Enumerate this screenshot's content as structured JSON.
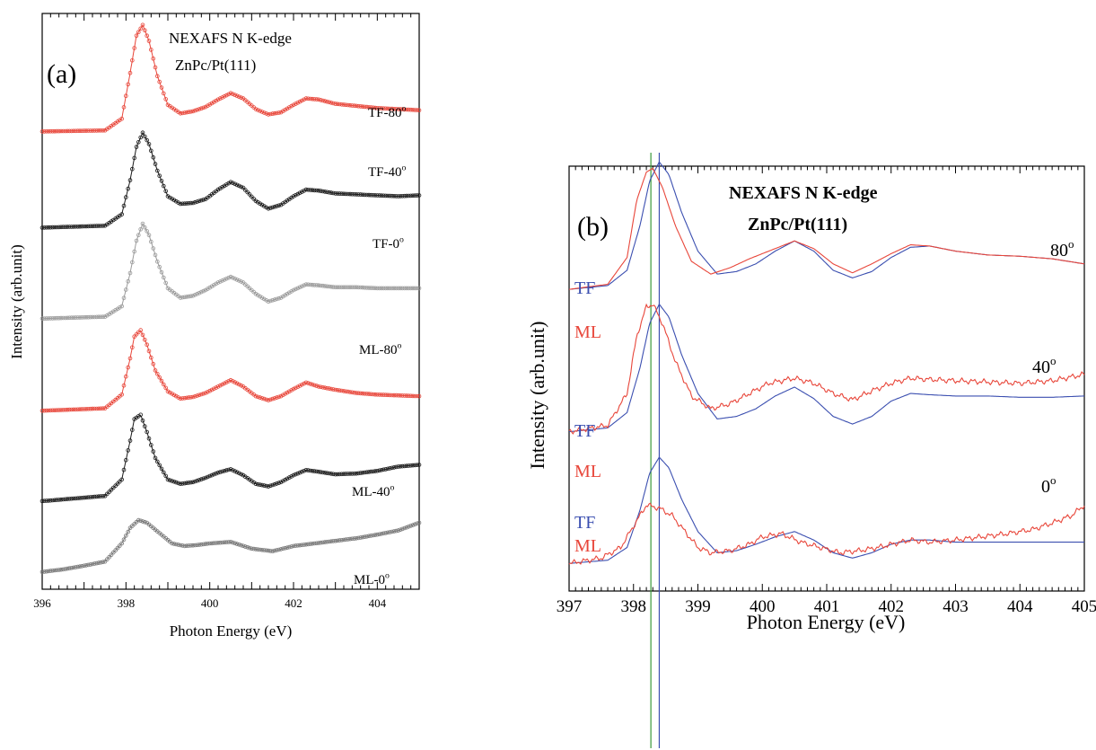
{
  "chart_data": [
    {
      "panel": "(a)",
      "type": "line",
      "title": "NEXAFS N K-edge",
      "subtitle": "ZnPc/Pt(111)",
      "xlabel": "Photon Energy (eV)",
      "ylabel": "Intensity (arb.unit)",
      "xlim": [
        396,
        405
      ],
      "x_ticks": [
        "396",
        "398",
        "400",
        "402",
        "404"
      ],
      "ylim": [
        0,
        1
      ],
      "grid": false,
      "series": [
        {
          "name": "TF-80",
          "label_base": "TF-80",
          "label_sup": "o",
          "color": "#e8463a",
          "marker": "circle",
          "offset": 0.795,
          "scale": 0.185,
          "x": [
            396.0,
            397.5,
            397.9,
            398.1,
            398.25,
            398.4,
            398.55,
            398.75,
            399.0,
            399.3,
            399.6,
            399.9,
            400.2,
            400.5,
            400.8,
            401.1,
            401.4,
            401.7,
            402.0,
            402.3,
            402.6,
            403.0,
            403.5,
            404.0,
            404.5,
            405.0
          ],
          "y": [
            0.0,
            0.01,
            0.12,
            0.55,
            0.9,
            1.0,
            0.85,
            0.52,
            0.25,
            0.17,
            0.19,
            0.23,
            0.3,
            0.36,
            0.31,
            0.21,
            0.16,
            0.18,
            0.25,
            0.31,
            0.3,
            0.26,
            0.24,
            0.22,
            0.21,
            0.2
          ]
        },
        {
          "name": "TF-40",
          "label_base": "TF-40",
          "label_sup": "o",
          "color": "#1a1a1a",
          "marker": "circle",
          "offset": 0.628,
          "scale": 0.165,
          "x": [
            396.0,
            397.5,
            397.9,
            398.1,
            398.25,
            398.4,
            398.55,
            398.75,
            399.0,
            399.3,
            399.6,
            399.9,
            400.2,
            400.5,
            400.8,
            401.1,
            401.4,
            401.7,
            402.0,
            402.3,
            402.6,
            403.0,
            403.5,
            404.0,
            404.5,
            405.0
          ],
          "y": [
            0.0,
            0.02,
            0.14,
            0.5,
            0.85,
            1.0,
            0.88,
            0.6,
            0.33,
            0.25,
            0.26,
            0.3,
            0.4,
            0.48,
            0.42,
            0.28,
            0.2,
            0.24,
            0.33,
            0.4,
            0.39,
            0.36,
            0.35,
            0.34,
            0.33,
            0.34
          ]
        },
        {
          "name": "TF-0",
          "label_base": "TF-0",
          "label_sup": "o",
          "color": "#9a9a9a",
          "marker": "circle",
          "offset": 0.47,
          "scale": 0.165,
          "x": [
            396.0,
            397.5,
            397.9,
            398.1,
            398.25,
            398.4,
            398.55,
            398.75,
            399.0,
            399.3,
            399.6,
            399.9,
            400.2,
            400.5,
            400.8,
            401.1,
            401.4,
            401.7,
            402.0,
            402.3,
            402.6,
            403.0,
            403.5,
            404.0,
            404.5,
            405.0
          ],
          "y": [
            0.0,
            0.02,
            0.13,
            0.48,
            0.82,
            1.0,
            0.88,
            0.6,
            0.32,
            0.22,
            0.24,
            0.3,
            0.38,
            0.44,
            0.38,
            0.26,
            0.18,
            0.22,
            0.3,
            0.36,
            0.35,
            0.33,
            0.33,
            0.32,
            0.32,
            0.32
          ]
        },
        {
          "name": "ML-80",
          "label_base": "ML-80",
          "label_sup": "o",
          "color": "#e8463a",
          "marker": "circle",
          "offset": 0.31,
          "scale": 0.14,
          "x": [
            396.0,
            397.5,
            397.9,
            398.1,
            398.2,
            398.35,
            398.5,
            398.7,
            399.0,
            399.3,
            399.6,
            399.9,
            400.2,
            400.5,
            400.8,
            401.1,
            401.4,
            401.7,
            402.0,
            402.3,
            402.6,
            403.0,
            403.5,
            404.0,
            404.5,
            405.0
          ],
          "y": [
            0.0,
            0.03,
            0.2,
            0.65,
            0.92,
            1.0,
            0.82,
            0.5,
            0.24,
            0.15,
            0.17,
            0.22,
            0.3,
            0.38,
            0.3,
            0.18,
            0.13,
            0.18,
            0.27,
            0.35,
            0.3,
            0.26,
            0.22,
            0.2,
            0.19,
            0.18
          ]
        },
        {
          "name": "ML-40",
          "label_base": "ML-40",
          "label_sup": "o",
          "color": "#1a1a1a",
          "marker": "circle",
          "offset": 0.153,
          "scale": 0.15,
          "x": [
            396.0,
            396.5,
            397.0,
            397.5,
            397.9,
            398.1,
            398.2,
            398.35,
            398.5,
            398.7,
            399.0,
            399.3,
            399.6,
            399.9,
            400.2,
            400.5,
            400.8,
            401.1,
            401.4,
            401.7,
            402.0,
            402.3,
            402.6,
            403.0,
            403.5,
            404.0,
            404.5,
            405.0
          ],
          "y": [
            0.0,
            0.02,
            0.04,
            0.06,
            0.25,
            0.7,
            0.95,
            1.0,
            0.8,
            0.5,
            0.25,
            0.2,
            0.22,
            0.27,
            0.33,
            0.37,
            0.3,
            0.2,
            0.17,
            0.22,
            0.3,
            0.36,
            0.34,
            0.31,
            0.32,
            0.35,
            0.4,
            0.42
          ]
        },
        {
          "name": "ML-0",
          "label_base": "ML-0",
          "label_sup": "o",
          "color": "#777777",
          "marker": "circle",
          "offset": 0.03,
          "scale": 0.09,
          "x": [
            396.0,
            396.5,
            397.0,
            397.5,
            397.9,
            398.1,
            398.3,
            398.5,
            398.8,
            399.1,
            399.4,
            399.7,
            400.0,
            400.5,
            401.0,
            401.5,
            402.0,
            402.5,
            403.0,
            403.5,
            404.0,
            404.5,
            405.0
          ],
          "y": [
            0.0,
            0.05,
            0.12,
            0.2,
            0.55,
            0.85,
            1.0,
            0.95,
            0.75,
            0.55,
            0.5,
            0.52,
            0.55,
            0.58,
            0.45,
            0.4,
            0.5,
            0.55,
            0.6,
            0.65,
            0.72,
            0.8,
            0.95
          ]
        }
      ]
    },
    {
      "panel": "(b)",
      "type": "line",
      "title": "NEXAFS N K-edge",
      "subtitle": "ZnPc/Pt(111)",
      "xlabel": "Photon Energy (eV)",
      "ylabel": "Intensity (arb.unit)",
      "xlim": [
        397,
        405
      ],
      "x_ticks": [
        "397",
        "398",
        "399",
        "400",
        "401",
        "402",
        "403",
        "404",
        "405"
      ],
      "ylim": [
        0,
        1
      ],
      "grid": false,
      "vertical_lines": [
        {
          "x": 398.27,
          "color": "#3a9a3a"
        },
        {
          "x": 398.4,
          "color": "#3b4fb0"
        }
      ],
      "groups": [
        {
          "angle_base": "80",
          "angle_sup": "o",
          "tf_label": "TF",
          "ml_label": "ML",
          "series": [
            {
              "name": "TF",
              "color": "#3b4fb0",
              "offset": 0.71,
              "scale": 0.3,
              "x": [
                397.0,
                397.6,
                397.9,
                398.1,
                398.25,
                398.4,
                398.55,
                398.75,
                399.0,
                399.3,
                399.6,
                399.9,
                400.2,
                400.5,
                400.8,
                401.1,
                401.4,
                401.7,
                402.0,
                402.3,
                402.6,
                403.0,
                403.5,
                404.0,
                404.5,
                405.0
              ],
              "y": [
                0.0,
                0.03,
                0.15,
                0.5,
                0.85,
                1.0,
                0.9,
                0.6,
                0.3,
                0.12,
                0.14,
                0.2,
                0.3,
                0.38,
                0.3,
                0.15,
                0.09,
                0.14,
                0.25,
                0.33,
                0.34,
                0.3,
                0.27,
                0.26,
                0.24,
                0.2
              ]
            },
            {
              "name": "ML",
              "color": "#e8463a",
              "offset": 0.71,
              "scale": 0.3,
              "x": [
                397.0,
                397.6,
                397.9,
                398.05,
                398.2,
                398.3,
                398.45,
                398.65,
                398.9,
                399.2,
                399.5,
                399.8,
                400.1,
                400.5,
                400.8,
                401.1,
                401.4,
                401.7,
                402.0,
                402.3,
                402.6,
                403.0,
                403.5,
                404.0,
                404.5,
                405.0
              ],
              "y": [
                0.0,
                0.04,
                0.25,
                0.7,
                0.92,
                0.95,
                0.8,
                0.5,
                0.22,
                0.12,
                0.17,
                0.24,
                0.3,
                0.38,
                0.32,
                0.2,
                0.13,
                0.2,
                0.28,
                0.35,
                0.34,
                0.3,
                0.27,
                0.26,
                0.24,
                0.2
              ]
            }
          ]
        },
        {
          "angle_base": "40",
          "angle_sup": "o",
          "tf_label": "TF",
          "ml_label": "ML",
          "series": [
            {
              "name": "TF",
              "color": "#3b4fb0",
              "offset": 0.375,
              "scale": 0.3,
              "x": [
                397.0,
                397.6,
                397.9,
                398.1,
                398.25,
                398.4,
                398.55,
                398.75,
                399.0,
                399.3,
                399.6,
                399.9,
                400.2,
                400.5,
                400.8,
                401.1,
                401.4,
                401.7,
                402.0,
                402.3,
                402.6,
                403.0,
                403.5,
                404.0,
                404.5,
                405.0
              ],
              "y": [
                0.0,
                0.03,
                0.15,
                0.5,
                0.85,
                1.0,
                0.9,
                0.6,
                0.3,
                0.1,
                0.12,
                0.18,
                0.28,
                0.35,
                0.26,
                0.12,
                0.06,
                0.12,
                0.24,
                0.3,
                0.29,
                0.28,
                0.28,
                0.27,
                0.27,
                0.28
              ]
            },
            {
              "name": "ML",
              "color": "#e8463a",
              "offset": 0.375,
              "scale": 0.3,
              "x": [
                397.0,
                397.6,
                397.9,
                398.05,
                398.2,
                398.3,
                398.45,
                398.65,
                398.9,
                399.2,
                399.5,
                399.8,
                400.1,
                400.5,
                400.8,
                401.1,
                401.4,
                401.7,
                402.0,
                402.3,
                402.6,
                403.0,
                403.5,
                404.0,
                404.5,
                405.0
              ],
              "y": [
                0.0,
                0.05,
                0.3,
                0.75,
                0.98,
                1.0,
                0.85,
                0.55,
                0.28,
                0.18,
                0.22,
                0.3,
                0.38,
                0.42,
                0.38,
                0.3,
                0.25,
                0.32,
                0.38,
                0.42,
                0.41,
                0.4,
                0.39,
                0.38,
                0.4,
                0.45
              ]
            }
          ]
        },
        {
          "angle_base": "0",
          "angle_sup": "o",
          "tf_label": "TF",
          "ml_label": "ML",
          "series": [
            {
              "name": "TF",
              "color": "#3b4fb0",
              "offset": 0.065,
              "scale": 0.25,
              "x": [
                397.0,
                397.6,
                397.9,
                398.1,
                398.25,
                398.4,
                398.55,
                398.75,
                399.0,
                399.3,
                399.6,
                399.9,
                400.2,
                400.5,
                400.8,
                401.1,
                401.4,
                401.7,
                402.0,
                402.3,
                402.6,
                403.0,
                403.5,
                404.0,
                404.5,
                405.0
              ],
              "y": [
                0.0,
                0.03,
                0.15,
                0.5,
                0.85,
                1.0,
                0.9,
                0.6,
                0.3,
                0.1,
                0.12,
                0.18,
                0.25,
                0.3,
                0.22,
                0.1,
                0.05,
                0.1,
                0.18,
                0.22,
                0.22,
                0.2,
                0.2,
                0.2,
                0.2,
                0.2
              ]
            },
            {
              "name": "ML",
              "color": "#e8463a",
              "offset": 0.065,
              "scale": 0.25,
              "x": [
                397.0,
                397.5,
                397.8,
                398.0,
                398.2,
                398.4,
                398.6,
                398.8,
                399.0,
                399.2,
                399.5,
                399.8,
                400.0,
                400.3,
                400.6,
                400.9,
                401.2,
                401.5,
                401.8,
                402.0,
                402.3,
                402.6,
                403.0,
                403.4,
                403.8,
                404.2,
                404.5,
                404.8,
                405.0
              ],
              "y": [
                0.0,
                0.05,
                0.15,
                0.35,
                0.55,
                0.52,
                0.45,
                0.3,
                0.15,
                0.1,
                0.12,
                0.18,
                0.25,
                0.28,
                0.2,
                0.15,
                0.1,
                0.12,
                0.15,
                0.18,
                0.22,
                0.2,
                0.22,
                0.25,
                0.28,
                0.32,
                0.38,
                0.45,
                0.55
              ]
            }
          ]
        }
      ]
    }
  ]
}
